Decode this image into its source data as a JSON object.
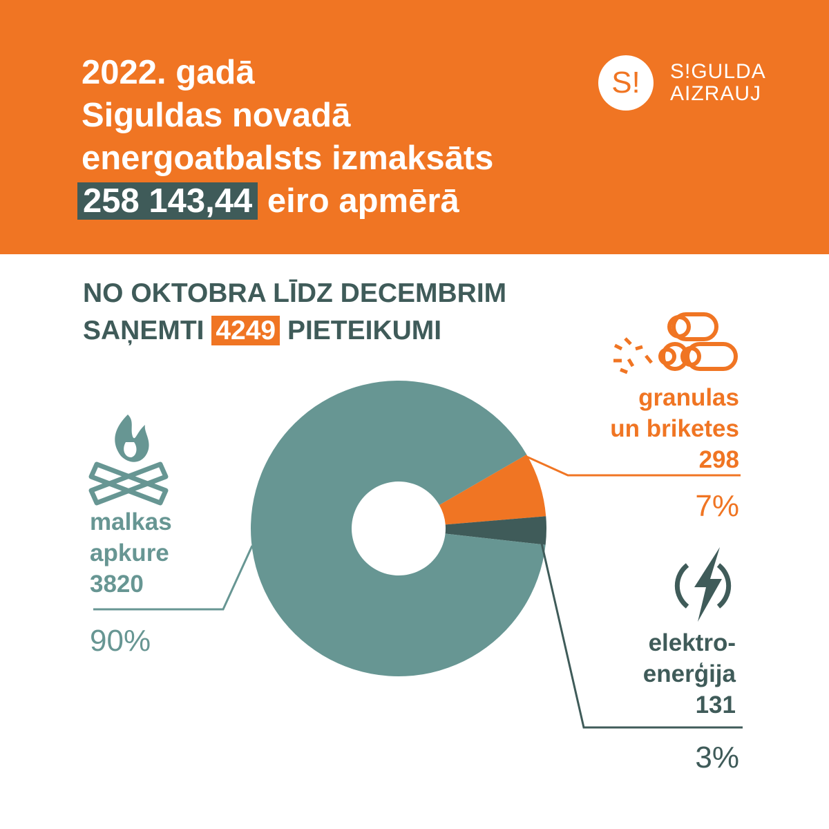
{
  "header": {
    "line1": "2022. gadā",
    "line2": "Siguldas novadā",
    "line3": "energoatbalsts izmaksāts",
    "amount": "258 143,44",
    "line4_rest": " eiro apmērā"
  },
  "logo": {
    "mark": "S!",
    "line1": "S!GULDA",
    "line2": "AIZRAUJ"
  },
  "subtitle": {
    "line1": "NO OKTOBRA LĪDZ DECEMBRIM",
    "pre": "SAŅEMTI ",
    "count": "4249",
    "post": " PIETEIKUMI"
  },
  "colors": {
    "orange": "#F07523",
    "dark": "#3F5B59",
    "teal": "#679693"
  },
  "chart_data": {
    "type": "pie",
    "donut": true,
    "total": 4249,
    "slices": [
      {
        "name": "granulas un briketes",
        "label1": "granulas",
        "label2": "un briketes",
        "value": 298,
        "value_label": "298",
        "percent": "7%",
        "color": "#F07523",
        "icon": "logs-pellets-icon"
      },
      {
        "name": "elektroenerģija",
        "label1": "elektro-",
        "label2": "enerģija",
        "value": 131,
        "value_label": "131",
        "percent": "3%",
        "color": "#3F5B59",
        "icon": "lightning-icon"
      },
      {
        "name": "malkas apkure",
        "label1": "malkas",
        "label2": "apkure",
        "value": 3820,
        "value_label": "3820",
        "percent": "90%",
        "color": "#679693",
        "icon": "campfire-icon"
      }
    ]
  }
}
